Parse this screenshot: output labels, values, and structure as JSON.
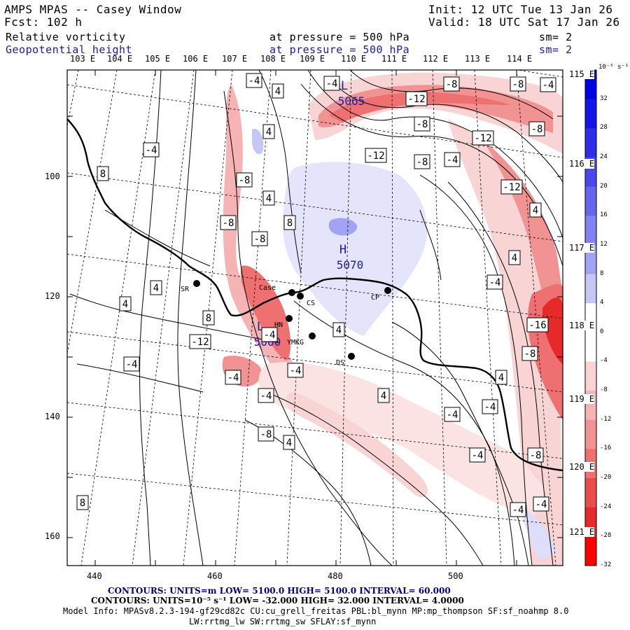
{
  "header": {
    "title": "AMPS MPAS -- Casey Window",
    "fcst": "Fcst:  102 h",
    "init": "Init: 12 UTC Tue 13 Jan 26",
    "valid": "Valid: 18 UTC Sat 17 Jan 26"
  },
  "fields": [
    {
      "name": "Relative vorticity",
      "level": "at pressure =  500 hPa",
      "sm": "sm= 2",
      "color": "#000000"
    },
    {
      "name": "Geopotential height",
      "level": "at pressure =  500 hPa",
      "sm": "sm= 2",
      "color": "#1a1aa6"
    }
  ],
  "map": {
    "top_lon_labels": [
      "103 E",
      "104 E",
      "105 E",
      "106 E",
      "107 E",
      "108 E",
      "109 E",
      "110 E",
      "111 E",
      "112 E",
      "113 E",
      "114 E"
    ],
    "right_lon_labels": [
      "115 E",
      "116 E",
      "117 E",
      "118 E",
      "119 E",
      "120 E",
      "121 E"
    ],
    "x_ticks": [
      "440",
      "460",
      "480",
      "500"
    ],
    "y_ticks": [
      "100",
      "120",
      "140",
      "160"
    ],
    "stations": [
      "SR",
      "Case",
      "CS",
      "CP",
      "HN",
      "YMKG",
      "DS"
    ],
    "center_labels": [
      {
        "letter": "L",
        "value": "5065"
      },
      {
        "letter": "H",
        "value": "5070"
      },
      {
        "letter": "L",
        "value": "5060"
      }
    ],
    "vort_labels": [
      "-4",
      "4",
      "-4",
      "-8",
      "-8",
      "-12",
      "-4",
      "-8",
      "4",
      "-12",
      "-8",
      "-4",
      "-12",
      "8",
      "-4",
      "4",
      "-8",
      "-12",
      "-8",
      "8",
      "4",
      "-8",
      "4",
      "-4",
      "-8",
      "4",
      "4",
      "-16",
      "8",
      "4",
      "-12",
      "-8",
      "-4",
      "-4",
      "-4",
      "4",
      "-4",
      "-4",
      "4",
      "-4",
      "-4",
      "-8",
      "4",
      "-4",
      "-8",
      "8",
      "-4",
      "-4"
    ]
  },
  "colorbar": {
    "units": "10⁻⁵ s⁻¹",
    "labels": [
      "32",
      "28",
      "24",
      "20",
      "16",
      "12",
      "8",
      "4",
      "0",
      "-4",
      "-8",
      "-12",
      "-16",
      "-20",
      "-24",
      "-28",
      "-32"
    ],
    "colors": [
      "#0000e6",
      "#1414e8",
      "#2e2eea",
      "#4848ec",
      "#6565ee",
      "#8282f0",
      "#a3a3f3",
      "#c6c6f7",
      "#ffffff",
      "#ffffff",
      "#f9d4d4",
      "#f6b3b3",
      "#f29393",
      "#ee7070",
      "#ea4d4d",
      "#e62a2a",
      "#ff0000"
    ]
  },
  "footer": {
    "contours1": "CONTOURS:  UNITS=m  LOW=  5100.0        HIGH=  5100.0        INTERVAL=  60.000",
    "contours2": "CONTOURS:  UNITS=10⁻⁵ s⁻¹  LOW= -32.000      HIGH= 32.000      INTERVAL=  4.0000",
    "model_info": "Model Info: MPASv8.2.3-194-gf29cd82c CU:cu_grell_freitas PBL:bl_mynn MP:mp_thompson SF:sf_noahmp 8.0",
    "model_info2": "LW:rrtmg_lw SW:rrtmg_sw SFLAY:sf_mynn"
  }
}
